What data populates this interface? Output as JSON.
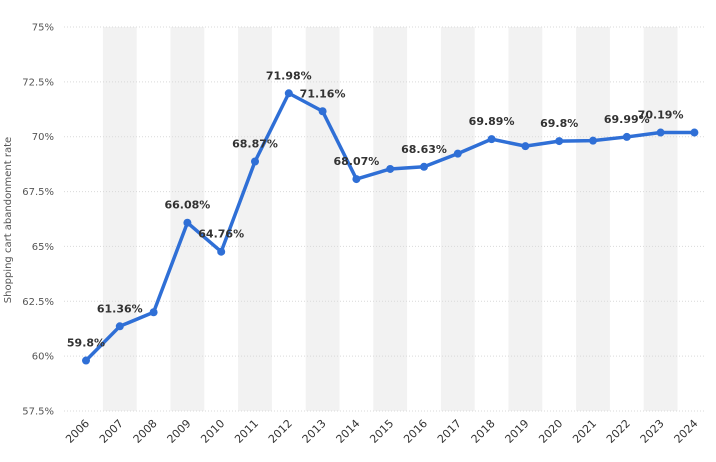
{
  "chart_data": {
    "type": "line",
    "ylabel": "Shopping cart abandonment rate",
    "xlabel": "",
    "x": [
      "2006",
      "2007",
      "2008",
      "2009",
      "2010",
      "2011",
      "2012",
      "2013",
      "2014",
      "2015",
      "2016",
      "2017",
      "2018",
      "2019",
      "2020",
      "2021",
      "2022",
      "2023",
      "2024"
    ],
    "series": [
      {
        "values": [
          59.8,
          61.36,
          62.0,
          66.08,
          64.76,
          68.87,
          71.98,
          71.16,
          68.07,
          68.53,
          68.63,
          69.23,
          69.89,
          69.57,
          69.8,
          69.82,
          69.99,
          70.19,
          70.19
        ]
      }
    ],
    "data_labels": [
      {
        "index": 0,
        "text": "59.8%"
      },
      {
        "index": 1,
        "text": "61.36%"
      },
      {
        "index": 3,
        "text": "66.08%"
      },
      {
        "index": 4,
        "text": "64.76%"
      },
      {
        "index": 5,
        "text": "68.87%"
      },
      {
        "index": 6,
        "text": "71.98%"
      },
      {
        "index": 7,
        "text": "71.16%"
      },
      {
        "index": 8,
        "text": "68.07%"
      },
      {
        "index": 10,
        "text": "68.63%"
      },
      {
        "index": 12,
        "text": "69.89%"
      },
      {
        "index": 14,
        "text": "69.8%"
      },
      {
        "index": 16,
        "text": "69.99%"
      },
      {
        "index": 17,
        "text": "70.19%"
      }
    ],
    "ylim": [
      57.5,
      75
    ],
    "yticks": [
      57.5,
      60,
      62.5,
      65,
      67.5,
      70,
      72.5,
      75
    ],
    "ytick_labels": [
      "57.5%",
      "60%",
      "62.5%",
      "65%",
      "67.5%",
      "70%",
      "72.5%",
      "75%"
    ],
    "grid": true,
    "colors": {
      "line": "#2f6fd6",
      "band": "#f2f2f2",
      "grid": "#d9d9d9"
    }
  }
}
